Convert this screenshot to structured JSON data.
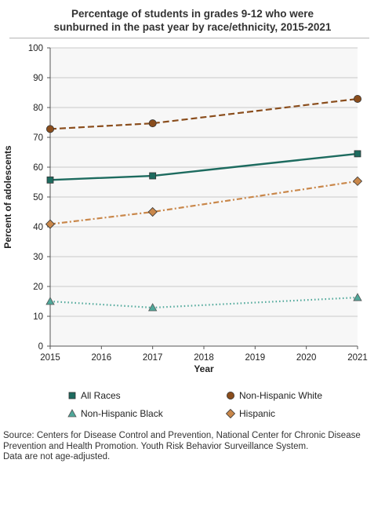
{
  "chart_data": {
    "type": "line",
    "title_lines": [
      "Percentage of students in grades 9-12 who were",
      "sunburned in the past year by race/ethnicity, 2015-2021"
    ],
    "xlabel": "Year",
    "ylabel": "Percent of adolescents",
    "x_ticks": [
      "2015",
      "2016",
      "2017",
      "2018",
      "2019",
      "2020",
      "2021"
    ],
    "y_ticks": [
      "0",
      "10",
      "20",
      "30",
      "40",
      "50",
      "60",
      "70",
      "80",
      "90",
      "100"
    ],
    "xlim": [
      2015,
      2021
    ],
    "ylim": [
      0,
      100
    ],
    "grid": "horizontal",
    "legend_position": "bottom",
    "series": [
      {
        "name": "All Races",
        "x": [
          2015,
          2017,
          2021
        ],
        "values": [
          55.7,
          57.1,
          64.5
        ],
        "color": "#1d6b5f",
        "marker": "square",
        "line": "solid"
      },
      {
        "name": "Non-Hispanic White",
        "x": [
          2015,
          2017,
          2021
        ],
        "values": [
          72.8,
          74.7,
          82.9
        ],
        "color": "#8a4d1c",
        "marker": "circle",
        "line": "dashed"
      },
      {
        "name": "Non-Hispanic Black",
        "x": [
          2015,
          2017,
          2021
        ],
        "values": [
          15.0,
          12.9,
          16.3
        ],
        "color": "#4fa89a",
        "marker": "triangle",
        "line": "dotted"
      },
      {
        "name": "Hispanic",
        "x": [
          2015,
          2017,
          2021
        ],
        "values": [
          40.9,
          45.0,
          55.3
        ],
        "color": "#c9874a",
        "marker": "diamond",
        "line": "dashdot"
      }
    ]
  },
  "footer": {
    "source_lines": [
      "Source: Centers for Disease Control and Prevention, National Center for Chronic Disease",
      "Prevention and Health Promotion. Youth Risk Behavior Surveillance System.",
      "Data are not age-adjusted."
    ]
  }
}
